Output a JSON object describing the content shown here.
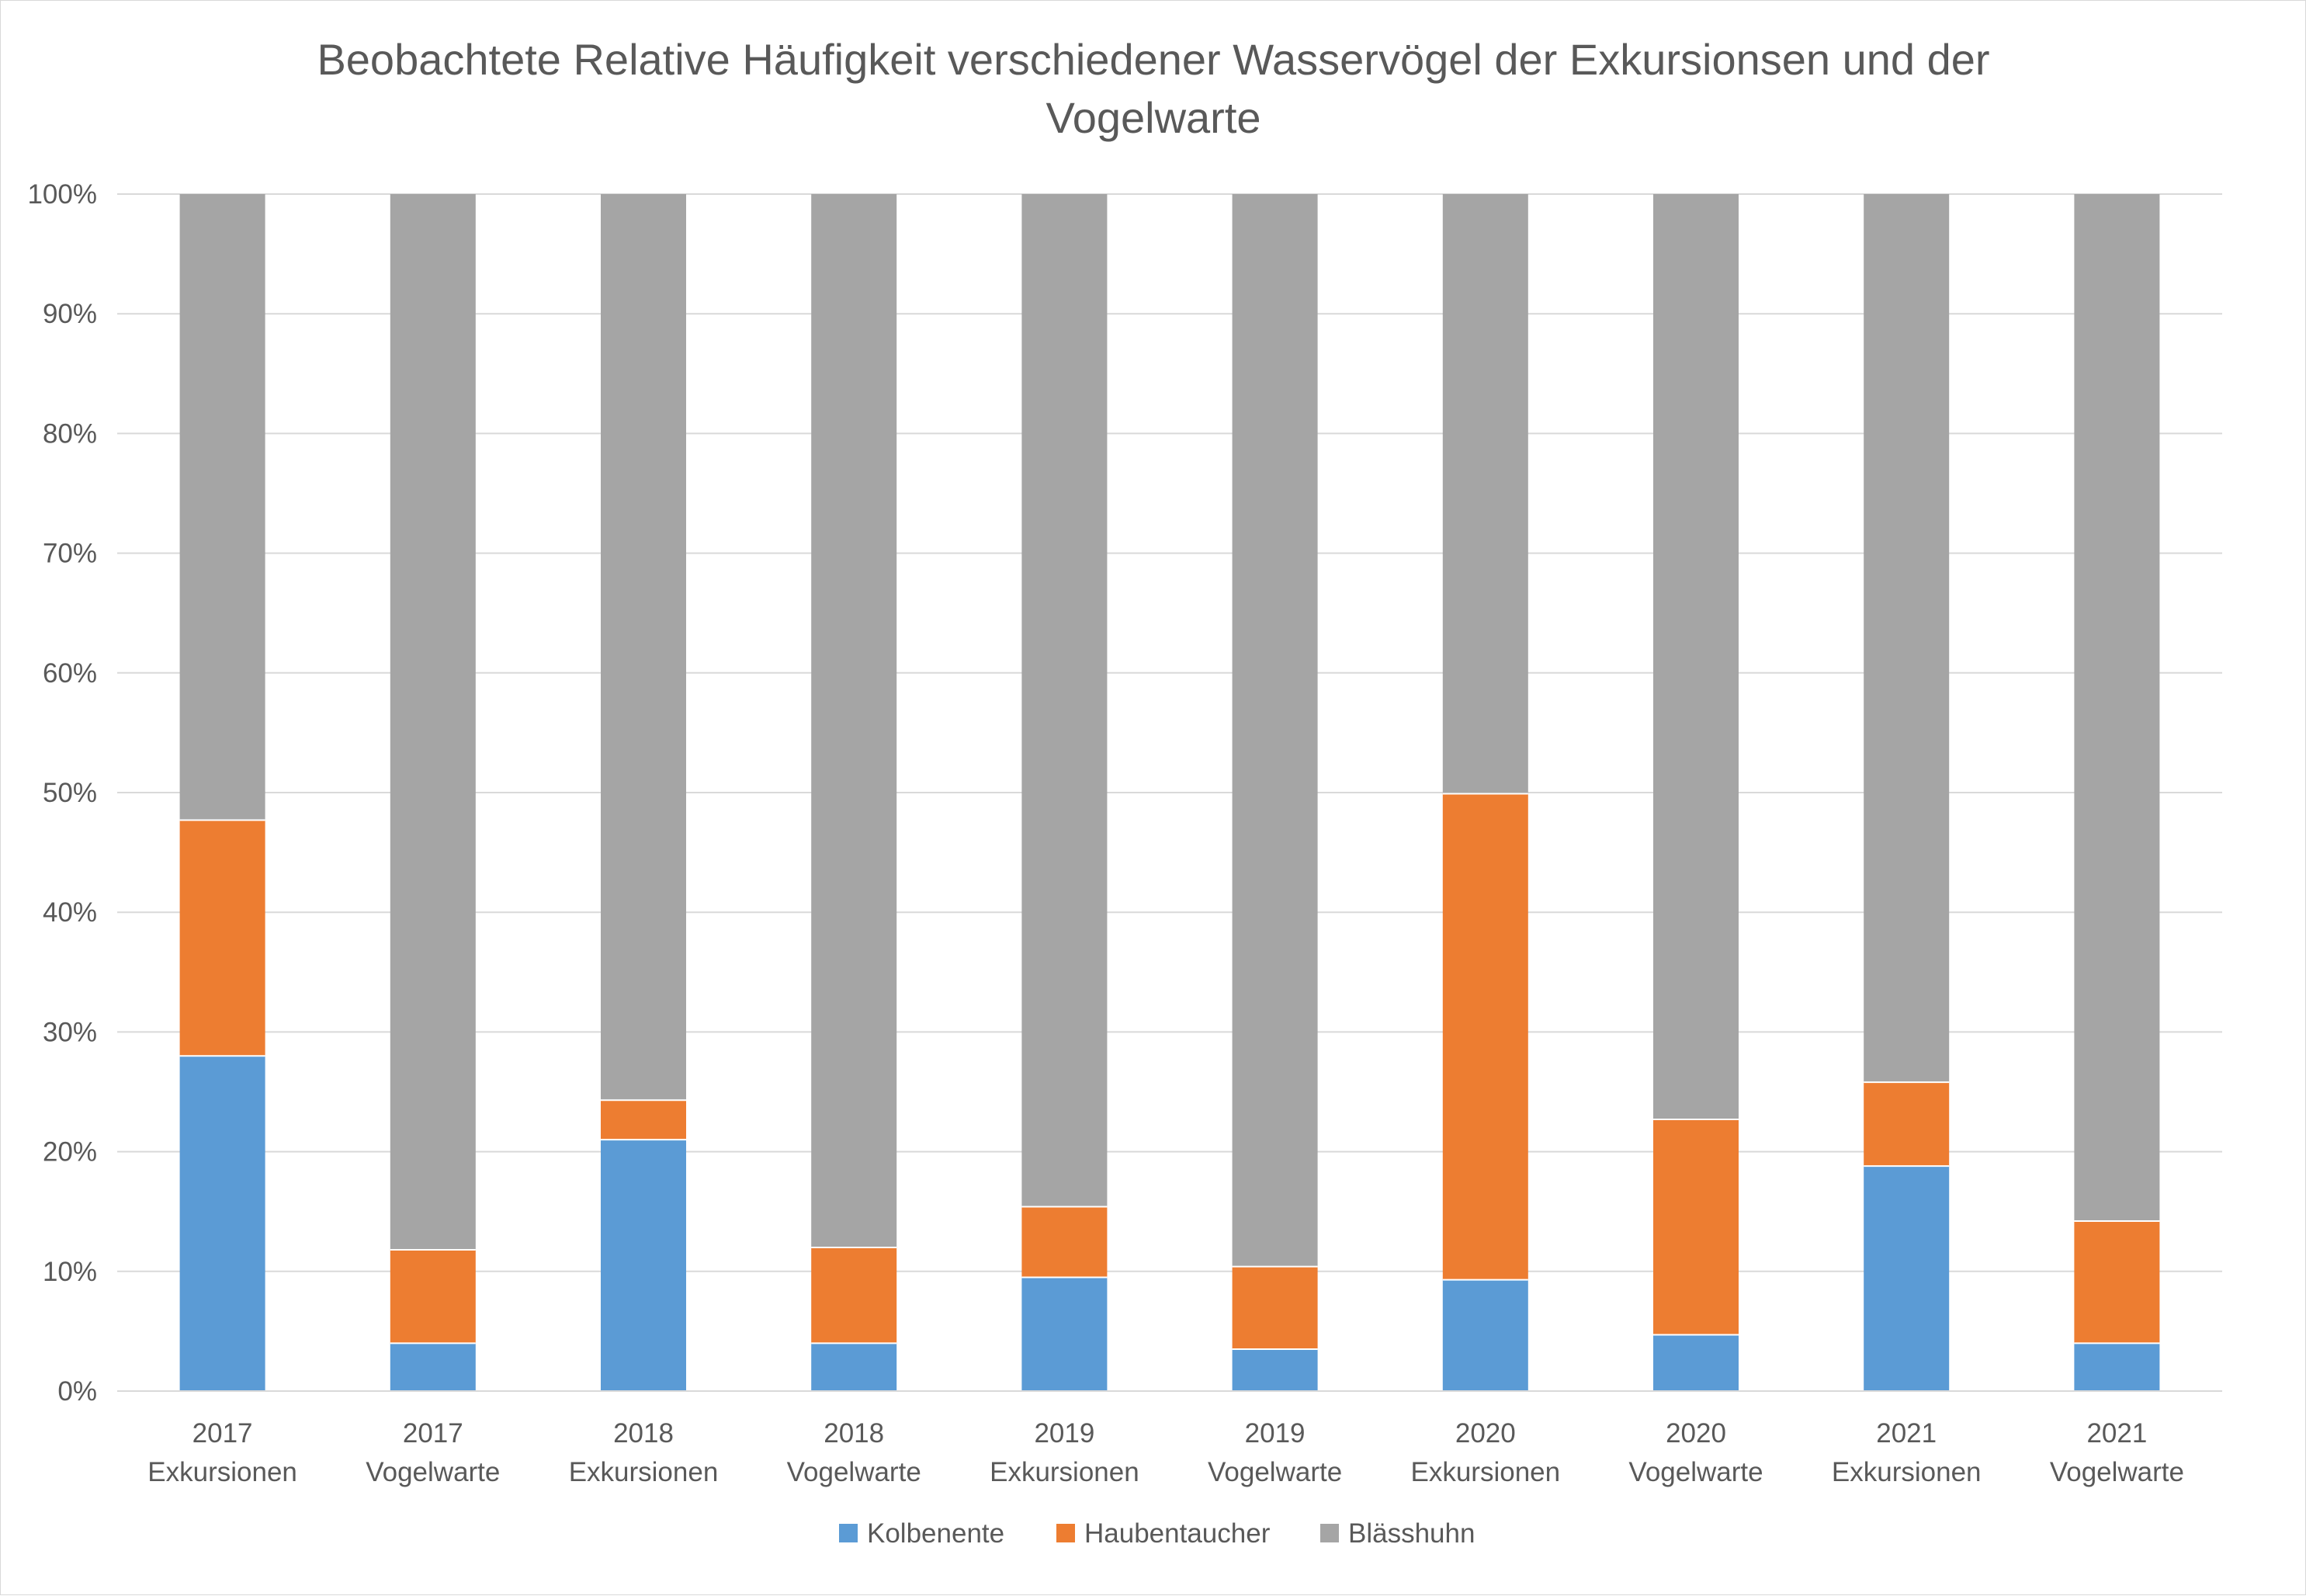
{
  "chart_data": {
    "type": "bar",
    "stacked": true,
    "percent_stacked": true,
    "title": "Beobachtete Relative Häufigkeit verschiedener Wasservögel der Exkursionsen und der Vogelwarte",
    "title_lines": [
      "Beobachtete Relative Häufigkeit verschiedener Wasservögel der Exkursionsen und der",
      "Vogelwarte"
    ],
    "xlabel": "",
    "ylabel": "",
    "ylim": [
      0,
      100
    ],
    "yticks": [
      "0%",
      "10%",
      "20%",
      "30%",
      "40%",
      "50%",
      "60%",
      "70%",
      "80%",
      "90%",
      "100%"
    ],
    "grid": true,
    "legend_position": "bottom",
    "categories": [
      [
        "2017",
        "Exkursionen"
      ],
      [
        "2017",
        "Vogelwarte"
      ],
      [
        "2018",
        "Exkursionen"
      ],
      [
        "2018",
        "Vogelwarte"
      ],
      [
        "2019",
        "Exkursionen"
      ],
      [
        "2019",
        "Vogelwarte"
      ],
      [
        "2020",
        "Exkursionen"
      ],
      [
        "2020",
        "Vogelwarte"
      ],
      [
        "2021",
        "Exkursionen"
      ],
      [
        "2021",
        "Vogelwarte"
      ]
    ],
    "series": [
      {
        "name": "Kolbenente",
        "color": "#5b9bd5",
        "values": [
          28,
          4,
          21,
          4,
          9.5,
          3.5,
          9.3,
          4.7,
          18.8,
          4
        ]
      },
      {
        "name": "Haubentaucher",
        "color": "#ed7d31",
        "values": [
          19.7,
          7.8,
          3.3,
          8,
          5.9,
          6.9,
          40.6,
          18,
          7,
          10.2
        ]
      },
      {
        "name": "Blässhuhn",
        "color": "#a5a5a5",
        "values": [
          52.3,
          88.2,
          75.7,
          88,
          84.6,
          89.6,
          50.1,
          77.3,
          74.2,
          85.8
        ]
      }
    ]
  }
}
